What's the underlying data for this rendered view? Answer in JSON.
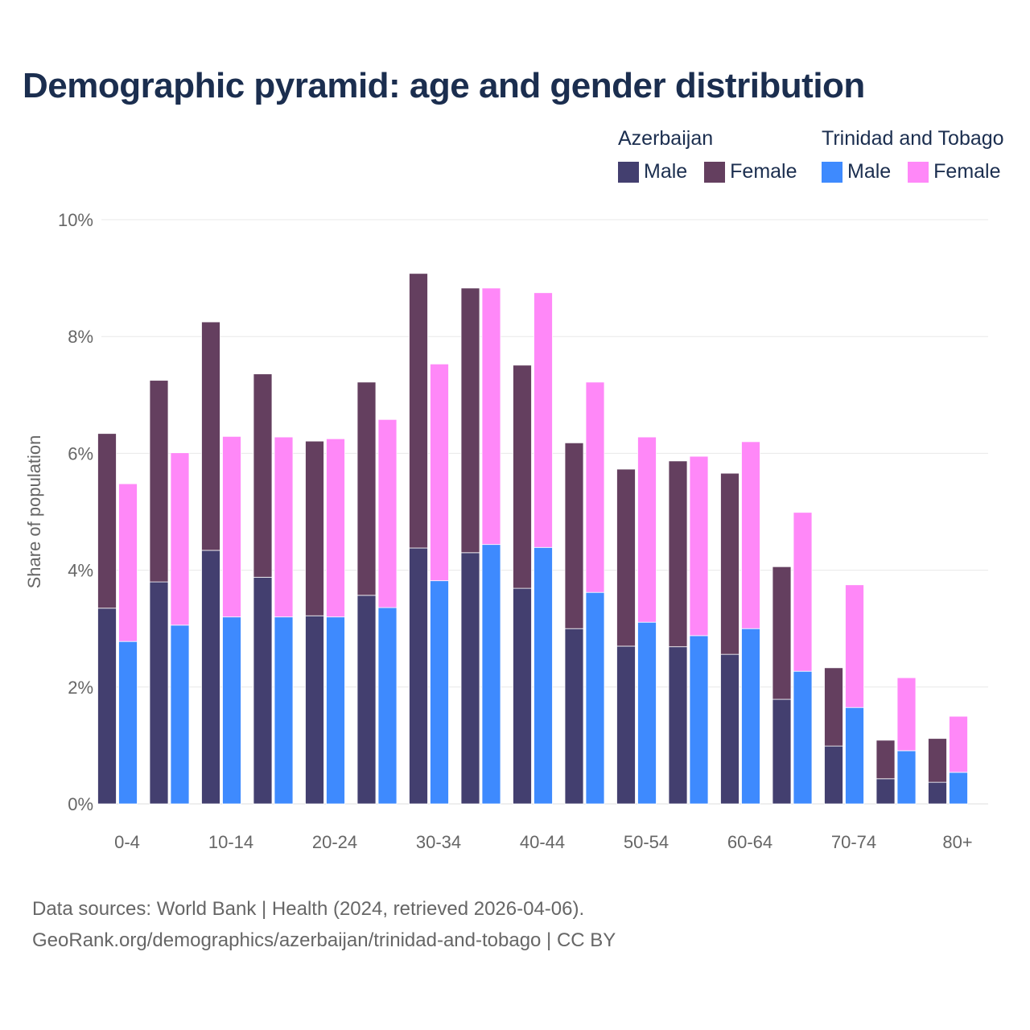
{
  "chart_data": {
    "type": "bar",
    "title": "Demographic pyramid: age and gender distribution",
    "ylabel": "Share of population",
    "xlabel": "",
    "ylim": [
      0,
      10
    ],
    "y_ticks": [
      0,
      2,
      4,
      6,
      8,
      10
    ],
    "y_tick_labels": [
      "0%",
      "2%",
      "4%",
      "6%",
      "8%",
      "10%"
    ],
    "grid": true,
    "legend_position": "top-right",
    "stacked": true,
    "categories": [
      "0-4",
      "5-9",
      "10-14",
      "15-19",
      "20-24",
      "25-29",
      "30-34",
      "35-39",
      "40-44",
      "45-49",
      "50-54",
      "55-59",
      "60-64",
      "65-69",
      "70-74",
      "75-79",
      "80+"
    ],
    "x_tick_labels": [
      "0-4",
      "10-14",
      "20-24",
      "30-34",
      "40-44",
      "50-54",
      "60-64",
      "70-74",
      "80+"
    ],
    "groups": [
      {
        "name": "Azerbaijan",
        "series": [
          {
            "name": "Male",
            "color": "#433f6f",
            "values": [
              3.35,
              3.8,
              4.34,
              3.88,
              3.22,
              3.57,
              4.38,
              4.3,
              3.69,
              3.0,
              2.7,
              2.69,
              2.56,
              1.79,
              0.99,
              0.43,
              0.37
            ]
          },
          {
            "name": "Female",
            "color": "#643f5f",
            "values": [
              2.99,
              3.45,
              3.91,
              3.48,
              2.99,
              3.65,
              4.7,
              4.53,
              3.82,
              3.18,
              3.03,
              3.18,
              3.1,
              2.27,
              1.34,
              0.66,
              0.75
            ]
          }
        ]
      },
      {
        "name": "Trinidad and Tobago",
        "series": [
          {
            "name": "Male",
            "color": "#3e8afe",
            "values": [
              2.78,
              3.06,
              3.2,
              3.2,
              3.2,
              3.36,
              3.82,
              4.44,
              4.39,
              3.62,
              3.11,
              2.88,
              3.0,
              2.27,
              1.65,
              0.91,
              0.54
            ]
          },
          {
            "name": "Female",
            "color": "#ff88f8",
            "values": [
              2.7,
              2.95,
              3.09,
              3.08,
              3.05,
              3.22,
              3.71,
              4.39,
              4.36,
              3.6,
              3.17,
              3.07,
              3.2,
              2.72,
              2.1,
              1.25,
              0.96
            ]
          }
        ]
      }
    ]
  },
  "footer": {
    "line1": "Data sources: World Bank | Health (2024, retrieved 2026-04-06).",
    "line2": "GeoRank.org/demographics/azerbaijan/trinidad-and-tobago | CC BY"
  }
}
